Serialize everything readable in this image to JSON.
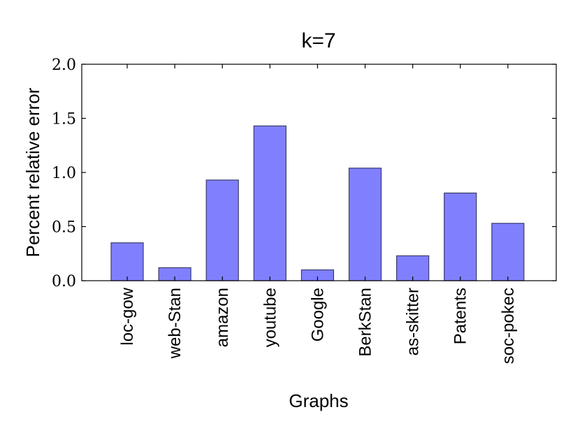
{
  "chart_data": {
    "type": "bar",
    "title": "k=7",
    "xlabel": "Graphs",
    "ylabel": "Percent relative error",
    "categories": [
      "loc-gow",
      "web-Stan",
      "amazon",
      "youtube",
      "Google",
      "BerkStan",
      "as-skitter",
      "Patents",
      "soc-pokec"
    ],
    "values": [
      0.35,
      0.12,
      0.93,
      1.43,
      0.1,
      1.04,
      0.23,
      0.81,
      0.53
    ],
    "ylim": [
      0,
      2.0
    ],
    "yticks": [
      0.0,
      0.5,
      1.0,
      1.5,
      2.0
    ],
    "ytick_labels": [
      "0.0",
      "0.5",
      "1.0",
      "1.5",
      "2.0"
    ],
    "grid": false,
    "bar_color": "#8080ff",
    "bar_edge_color": "#3a3a6e"
  }
}
